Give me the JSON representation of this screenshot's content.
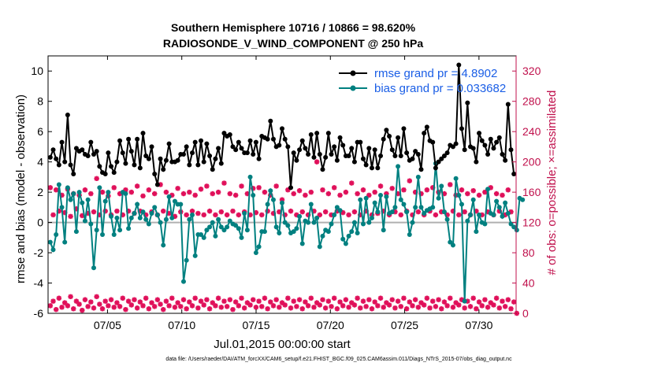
{
  "chart_data": {
    "type": "line",
    "title_line1": "Southern Hemisphere 10716 / 10866 = 98.620%",
    "title_line2": "RADIOSONDE_V_WIND_COMPONENT @ 250 hPa",
    "xlabel": "Jul.01,2015 00:00:00 start",
    "ylabel_left": "rmse and bias (model - observation)",
    "ylabel_right": "# of obs: o=possible; ×=assimilated",
    "footnote": "data file: /Users/raeder/DAI/ATM_forcXX/CAM6_setup/f.e21.FHIST_BGC.f09_025.CAM6assim.011/Diags_NTrS_2015-07/obs_diag_output.nc",
    "x_range_days": [
      1,
      32.5
    ],
    "ylim_left": [
      -6,
      11
    ],
    "ylim_right": [
      0,
      340
    ],
    "x_tick_labels": [
      "07/05",
      "07/10",
      "07/15",
      "07/20",
      "07/25",
      "07/30"
    ],
    "x_tick_days": [
      5,
      10,
      15,
      20,
      25,
      30
    ],
    "y_left_ticks": [
      "-6",
      "-4",
      "-2",
      "0",
      "2",
      "4",
      "6",
      "8",
      "10"
    ],
    "y_right_ticks": [
      "0",
      "40",
      "80",
      "120",
      "160",
      "200",
      "240",
      "280",
      "320"
    ],
    "legend": [
      {
        "label": "rmse grand pr = 4.8902",
        "color": "#000000"
      },
      {
        "label": "bias grand pr = 0.033682",
        "color": "#008080"
      }
    ],
    "colors": {
      "rmse": "#000000",
      "bias": "#008080",
      "obs": "#e0105a",
      "right_axis": "#c0104c",
      "zero_line": "#b0b0b0"
    },
    "series": [
      {
        "name": "rmse",
        "values": [
          4.3,
          4.8,
          4.2,
          3.8,
          5.3,
          4.0,
          7.1,
          3.8,
          3.2,
          4.9,
          4.7,
          4.8,
          4.5,
          4.4,
          5.3,
          4.5,
          4.7,
          3.7,
          3.3,
          3.2,
          4.6,
          3.7,
          3.3,
          4.0,
          5.4,
          4.6,
          3.9,
          5.5,
          4.7,
          3.8,
          5.5,
          3.6,
          5.9,
          4.4,
          4.2,
          5.0,
          3.2,
          2.5,
          4.2,
          3.5,
          4.1,
          5.2,
          4.0,
          4.0,
          4.1,
          4.5,
          4.5,
          5.0,
          3.8,
          4.6,
          5.3,
          3.8,
          5.4,
          4.0,
          5.2,
          4.4,
          3.5,
          4.2,
          4.9,
          3.9,
          5.9,
          5.7,
          5.8,
          5.0,
          4.8,
          5.3,
          4.9,
          4.6,
          4.6,
          5.4,
          4.5,
          5.3,
          4.2,
          5.7,
          5.6,
          5.5,
          6.7,
          5.5,
          5.0,
          5.1,
          6.2,
          5.5,
          5.0,
          2.3,
          4.6,
          4.1,
          4.8,
          5.4,
          4.9,
          4.5,
          5.8,
          4.3,
          5.9,
          4.5,
          3.5,
          4.3,
          5.9,
          4.5,
          5.0,
          4.1,
          5.6,
          5.1,
          4.4,
          4.4,
          4.9,
          4.0,
          5.3,
          5.3,
          4.2,
          3.8,
          4.9,
          3.6,
          4.8,
          3.6,
          4.4,
          5.5,
          6.1,
          5.7,
          4.8,
          4.4,
          5.6,
          4.4,
          6.2,
          4.6,
          4.1,
          4.2,
          4.7,
          4.5,
          3.5,
          5.9,
          6.3,
          5.4,
          5.3,
          3.6,
          4.0,
          4.2,
          4.4,
          4.6,
          5.1,
          5.0,
          5.2,
          10.4,
          6.2,
          4.8,
          7.9,
          5.0,
          4.9,
          4.0,
          5.9,
          5.4,
          5.1,
          4.5,
          5.5,
          4.9,
          5.3,
          5.6,
          4.5,
          4.1,
          7.8,
          4.8,
          3.2
        ]
      },
      {
        "name": "bias",
        "values": [
          -1.3,
          -1.8,
          -0.8,
          2.5,
          1.0,
          -1.3,
          2.3,
          1.5,
          1.9,
          -0.6,
          2.0,
          1.3,
          0.1,
          1.5,
          -0.1,
          -3.0,
          -0.5,
          2.3,
          -0.8,
          1.4,
          2.0,
          0.4,
          -0.8,
          0.3,
          -0.5,
          2.0,
          1.9,
          -0.4,
          0.3,
          0.6,
          1.2,
          0.3,
          0.7,
          0.2,
          -0.1,
          0.6,
          1.0,
          0.5,
          0.0,
          -1.5,
          0.2,
          1.7,
          0.3,
          1.4,
          1.2,
          1.2,
          -3.9,
          -2.5,
          0.2,
          0.5,
          -2.2,
          -0.8,
          -0.8,
          -1.0,
          -0.5,
          -0.3,
          0.0,
          -0.9,
          0.2,
          -0.3,
          -0.5,
          -0.3,
          0.1,
          -0.1,
          -0.2,
          -0.4,
          -1.0,
          0.6,
          -0.5,
          3.0,
          1.8,
          -2.0,
          -1.6,
          -0.6,
          -0.6,
          1.2,
          2.1,
          1.5,
          -0.3,
          -0.7,
          1.3,
          0.0,
          -0.2,
          -0.7,
          -0.6,
          -0.4,
          0.4,
          -1.4,
          0.1,
          0.0,
          1.2,
          0.0,
          0.3,
          -1.6,
          -0.9,
          -0.5,
          -0.6,
          -0.1,
          0.5,
          1.0,
          0.8,
          -1.1,
          -1.4,
          -0.9,
          -0.6,
          0.0,
          -0.7,
          1.5,
          -0.1,
          1.6,
          0.0,
          0.3,
          1.3,
          0.7,
          1.8,
          -0.5,
          1.7,
          0.6,
          0.7,
          1.0,
          3.7,
          1.5,
          1.2,
          0.7,
          -0.8,
          0.0,
          1.0,
          3.0,
          1.0,
          0.6,
          0.8,
          0.9,
          1.0,
          3.9,
          1.6,
          2.4,
          0.7,
          0.2,
          -1.3,
          -1.5,
          2.9,
          1.8,
          1.2,
          -5.2,
          0.1,
          0.5,
          1.5,
          -0.6,
          0.5,
          0.0,
          -0.1,
          2.2,
          0.6,
          0.5,
          1.4,
          1.0,
          0.4,
          1.3,
          0.6,
          -0.1,
          -0.3,
          -0.5,
          1.6,
          1.5
        ]
      },
      {
        "name": "obs_possible_high",
        "values": [
          166,
          130,
          163,
          135,
          156,
          133,
          164,
          128,
          158,
          138,
          156,
          129,
          163,
          132,
          158,
          134,
          178,
          130,
          160,
          135,
          155,
          130,
          166,
          135,
          158,
          130,
          163,
          135,
          160,
          132,
          168,
          135,
          155,
          130,
          163,
          134,
          158,
          130,
          170,
          135,
          160,
          132,
          156,
          128,
          165,
          134,
          158,
          130,
          160,
          135,
          156,
          132,
          164,
          130,
          168,
          135,
          158,
          130,
          160,
          134,
          172,
          130,
          158,
          135,
          156,
          130,
          168,
          134,
          158,
          130,
          165,
          133,
          166,
          130,
          160,
          135,
          156,
          132,
          168,
          134,
          150,
          130,
          163,
          135,
          158,
          130,
          162,
          134,
          156,
          130,
          160,
          135,
          200,
          130,
          163,
          134,
          158,
          130,
          166,
          135,
          156,
          133,
          160,
          130,
          172,
          134,
          158,
          130,
          163,
          135,
          156,
          130,
          160,
          132,
          168,
          135,
          158,
          130,
          165,
          134,
          158,
          130,
          163,
          135,
          175,
          130,
          160,
          134,
          158,
          130,
          163,
          135,
          166,
          130,
          160,
          134,
          158,
          130,
          170,
          135,
          156,
          130,
          163,
          134,
          158,
          130,
          162,
          135,
          156,
          130,
          160,
          134,
          166,
          130,
          158,
          135,
          156,
          130,
          163,
          134
        ]
      },
      {
        "name": "obs_possible_low",
        "values": [
          10,
          16,
          5,
          20,
          8,
          14,
          10,
          22,
          6,
          16,
          12,
          4,
          18,
          9,
          15,
          7,
          22,
          12,
          6,
          16,
          10,
          18,
          8,
          14,
          9,
          20,
          5,
          16,
          11,
          18,
          7,
          15,
          10,
          20,
          6,
          14,
          9,
          18,
          12,
          5,
          16,
          10,
          20,
          8,
          14,
          9,
          18,
          6,
          15,
          10,
          20,
          7,
          16,
          11,
          18,
          6,
          14,
          10,
          20,
          8,
          16,
          9,
          18,
          5,
          15,
          10,
          20,
          7,
          14,
          11,
          18,
          8,
          16,
          9,
          20,
          6,
          15,
          10,
          18,
          8,
          14,
          11,
          20,
          7,
          16,
          9,
          18,
          6,
          15,
          10,
          20,
          8,
          14,
          11,
          18,
          7,
          16,
          9,
          20,
          6,
          15,
          10,
          18,
          8,
          14,
          11,
          20,
          7,
          16,
          9,
          18,
          6,
          15,
          10,
          20,
          8,
          14,
          11,
          18,
          7,
          16,
          9,
          20,
          6,
          15,
          10,
          18,
          8,
          14,
          11,
          20,
          7,
          16,
          9,
          18,
          6,
          15,
          10,
          20,
          8,
          14,
          11,
          18,
          7,
          16,
          9,
          20,
          6,
          15,
          10,
          18,
          8,
          14,
          11,
          20,
          7,
          16,
          9,
          18,
          6,
          15,
          0
        ]
      }
    ]
  }
}
